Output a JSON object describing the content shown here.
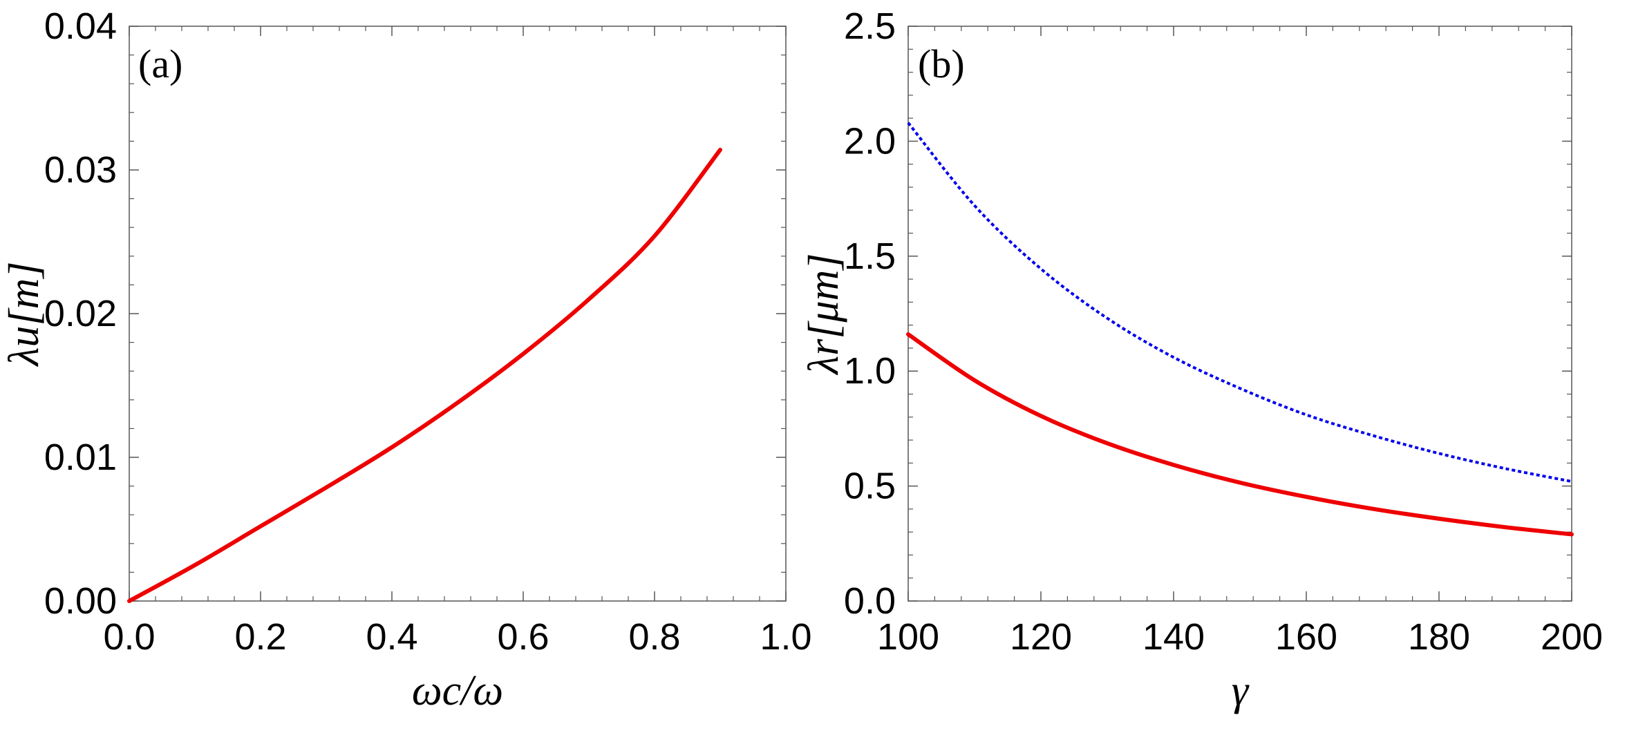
{
  "chart_data": [
    {
      "type": "line",
      "panel_label": "(a)",
      "xlabel": "ωc/ω",
      "ylabel": "λu[m]",
      "xlim": [
        0.0,
        1.0
      ],
      "ylim": [
        0.0,
        0.04
      ],
      "x_ticks": [
        0.0,
        0.2,
        0.4,
        0.6,
        0.8,
        1.0
      ],
      "x_tick_labels": [
        "0.0",
        "0.2",
        "0.4",
        "0.6",
        "0.8",
        "1.0"
      ],
      "y_ticks": [
        0.0,
        0.01,
        0.02,
        0.03,
        0.04
      ],
      "y_tick_labels": [
        "0.00",
        "0.01",
        "0.02",
        "0.03",
        "0.04"
      ],
      "series": [
        {
          "name": "λu",
          "color": "#ee0000",
          "style": "solid",
          "x": [
            0.0,
            0.1,
            0.2,
            0.3,
            0.4,
            0.5,
            0.6,
            0.7,
            0.8,
            0.9
          ],
          "y": [
            0.0,
            0.0025,
            0.0052,
            0.0079,
            0.0107,
            0.0138,
            0.0172,
            0.021,
            0.0254,
            0.0314
          ]
        }
      ]
    },
    {
      "type": "line",
      "panel_label": "(b)",
      "xlabel": "γ",
      "ylabel": "λr[μm]",
      "xlim": [
        100,
        200
      ],
      "ylim": [
        0.0,
        2.5
      ],
      "x_ticks": [
        100,
        120,
        140,
        160,
        180,
        200
      ],
      "x_tick_labels": [
        "100",
        "120",
        "140",
        "160",
        "180",
        "200"
      ],
      "y_ticks": [
        0.0,
        0.5,
        1.0,
        1.5,
        2.0,
        2.5
      ],
      "y_tick_labels": [
        "0.0",
        "0.5",
        "1.0",
        "1.5",
        "2.0",
        "2.5"
      ],
      "series": [
        {
          "name": "dotted",
          "color": "#0000ee",
          "style": "dotted",
          "x": [
            100,
            110,
            120,
            130,
            140,
            150,
            160,
            170,
            180,
            190,
            200
          ],
          "y": [
            2.08,
            1.72,
            1.445,
            1.23,
            1.06,
            0.925,
            0.81,
            0.72,
            0.642,
            0.576,
            0.52
          ]
        },
        {
          "name": "solid",
          "color": "#ee0000",
          "style": "solid",
          "x": [
            100,
            110,
            120,
            130,
            140,
            150,
            160,
            170,
            180,
            190,
            200
          ],
          "y": [
            1.16,
            0.96,
            0.805,
            0.686,
            0.592,
            0.515,
            0.453,
            0.401,
            0.358,
            0.321,
            0.29
          ]
        }
      ]
    }
  ]
}
